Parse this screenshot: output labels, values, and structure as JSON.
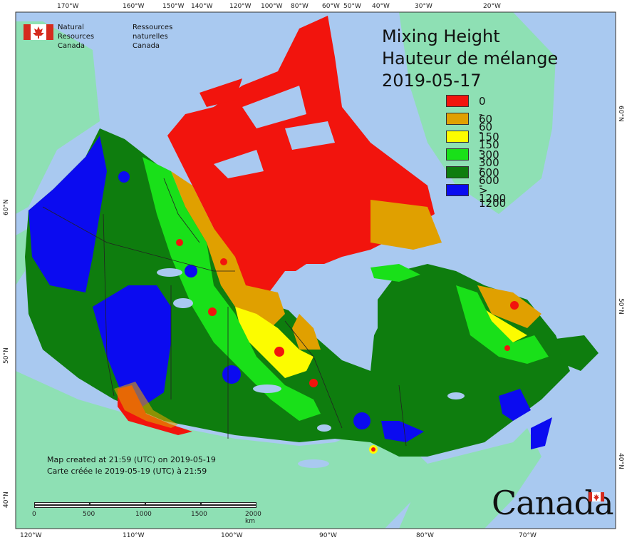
{
  "agency": {
    "name_en_line1": "Natural Resources",
    "name_en_line2": "Canada",
    "name_fr_line1": "Ressources naturelles",
    "name_fr_line2": "Canada"
  },
  "title": {
    "line1": "Mixing Height",
    "line2": "Hauteur de mélange",
    "date": "2019-05-17"
  },
  "legend": [
    {
      "label": "0 - 60",
      "color": "#f2140d"
    },
    {
      "label": "60 - 150",
      "color": "#e0a000"
    },
    {
      "label": "150 - 300",
      "color": "#fcfc00"
    },
    {
      "label": "300 - 600",
      "color": "#19e019"
    },
    {
      "label": "600 - 1200",
      "color": "#0e7d0e"
    },
    {
      "label": "> 1200",
      "color": "#0b0bf0"
    }
  ],
  "colors": {
    "ocean": "#a9c9f0",
    "foreign_land": "#8ee0b4",
    "lakes": "#a9c9f0"
  },
  "top_axis": [
    "170°W",
    "160°W",
    "150°W",
    "140°W",
    "120°W",
    "100°W",
    "80°W",
    "60°W",
    "50°W",
    "40°W",
    "30°W",
    "20°W"
  ],
  "bottom_axis": [
    "120°W",
    "110°W",
    "100°W",
    "90°W",
    "80°W",
    "70°W"
  ],
  "left_axis": [
    "60°N",
    "50°N",
    "40°N"
  ],
  "right_axis": [
    "60°N",
    "50°N",
    "40°N"
  ],
  "created": {
    "en": "Map created at 21:59 (UTC) on 2019-05-19",
    "fr": "Carte créée le 2019-05-19 (UTC) à 21:59"
  },
  "scale": {
    "ticks": [
      "0",
      "500",
      "1000",
      "1500",
      "2000 km"
    ]
  },
  "wordmark": "Canada"
}
